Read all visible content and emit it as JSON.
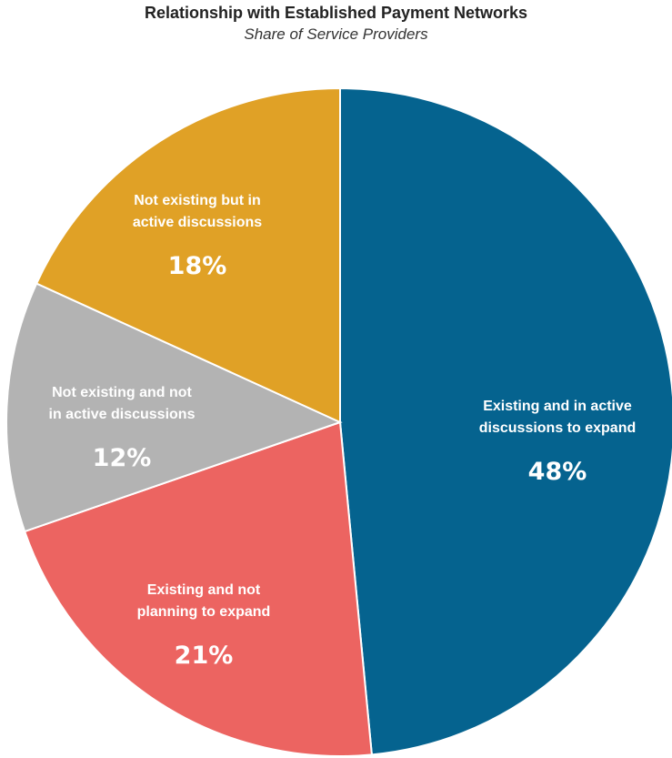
{
  "chart_data": {
    "type": "pie",
    "title": "Relationship with Established Payment Networks",
    "subtitle": "Share of Service Providers",
    "slices": [
      {
        "label_lines": [
          "Existing and in active",
          "discussions to expand"
        ],
        "value": 48,
        "value_label": "48%",
        "color": "#05638f"
      },
      {
        "label_lines": [
          "Existing and not",
          "planning to expand"
        ],
        "value": 21,
        "value_label": "21%",
        "color": "#ec6461"
      },
      {
        "label_lines": [
          "Not existing and not",
          "in active discussions"
        ],
        "value": 12,
        "value_label": "12%",
        "color": "#b3b3b3"
      },
      {
        "label_lines": [
          "Not existing but in",
          "active discussions"
        ],
        "value": 18,
        "value_label": "18%",
        "color": "#e0a126"
      }
    ]
  }
}
